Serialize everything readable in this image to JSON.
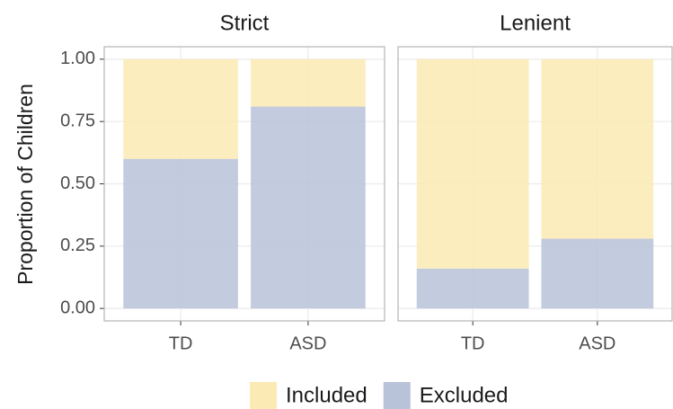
{
  "chart_data": {
    "type": "bar",
    "stacked": true,
    "y_label": "Proportion of Children",
    "categories": [
      "TD",
      "ASD"
    ],
    "ylim": [
      -0.05,
      1.05
    ],
    "yticks": [
      {
        "value": 0,
        "label": "0.00"
      },
      0.25,
      {
        "value": 0.5,
        "label": "0.50"
      },
      0.75,
      {
        "value": 1,
        "label": "1.00"
      }
    ],
    "grid": true,
    "series": [
      {
        "name": "Included",
        "color": "#fbeab3"
      },
      {
        "name": "Excluded",
        "color": "#b8c2d8"
      }
    ],
    "panels": [
      {
        "title": "Strict",
        "values": [
          [
            0.4,
            0.19
          ],
          [
            0.6,
            0.81
          ]
        ]
      },
      {
        "title": "Lenient",
        "values": [
          [
            0.84,
            0.72
          ],
          [
            0.16,
            0.28
          ]
        ]
      }
    ]
  }
}
